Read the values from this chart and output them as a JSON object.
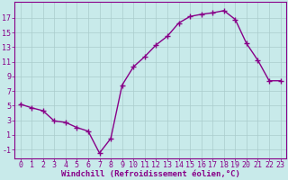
{
  "x": [
    0,
    1,
    2,
    3,
    4,
    5,
    6,
    7,
    8,
    9,
    10,
    11,
    12,
    13,
    14,
    15,
    16,
    17,
    18,
    19,
    20,
    21,
    22,
    23
  ],
  "y": [
    5.2,
    4.7,
    4.3,
    2.9,
    2.7,
    2.0,
    1.5,
    -1.5,
    0.5,
    7.8,
    10.3,
    11.7,
    13.3,
    14.5,
    16.3,
    17.2,
    17.5,
    17.7,
    18.0,
    16.8,
    13.5,
    11.2,
    8.4,
    8.4
  ],
  "line_color": "#880088",
  "marker": "+",
  "markersize": 4,
  "markeredgewidth": 1.0,
  "linewidth": 1.0,
  "bg_color": "#c8eaea",
  "grid_color": "#aacccc",
  "xlabel": "Windchill (Refroidissement éolien,°C)",
  "tick_color": "#880088",
  "label_color": "#880088",
  "yticks": [
    -1,
    1,
    3,
    5,
    7,
    9,
    11,
    13,
    15,
    17
  ],
  "xticks": [
    0,
    1,
    2,
    3,
    4,
    5,
    6,
    7,
    8,
    9,
    10,
    11,
    12,
    13,
    14,
    15,
    16,
    17,
    18,
    19,
    20,
    21,
    22,
    23
  ],
  "ylim": [
    -2.2,
    19.2
  ],
  "xlim": [
    -0.5,
    23.5
  ],
  "tick_fontsize": 6.0,
  "xlabel_fontsize": 6.5
}
